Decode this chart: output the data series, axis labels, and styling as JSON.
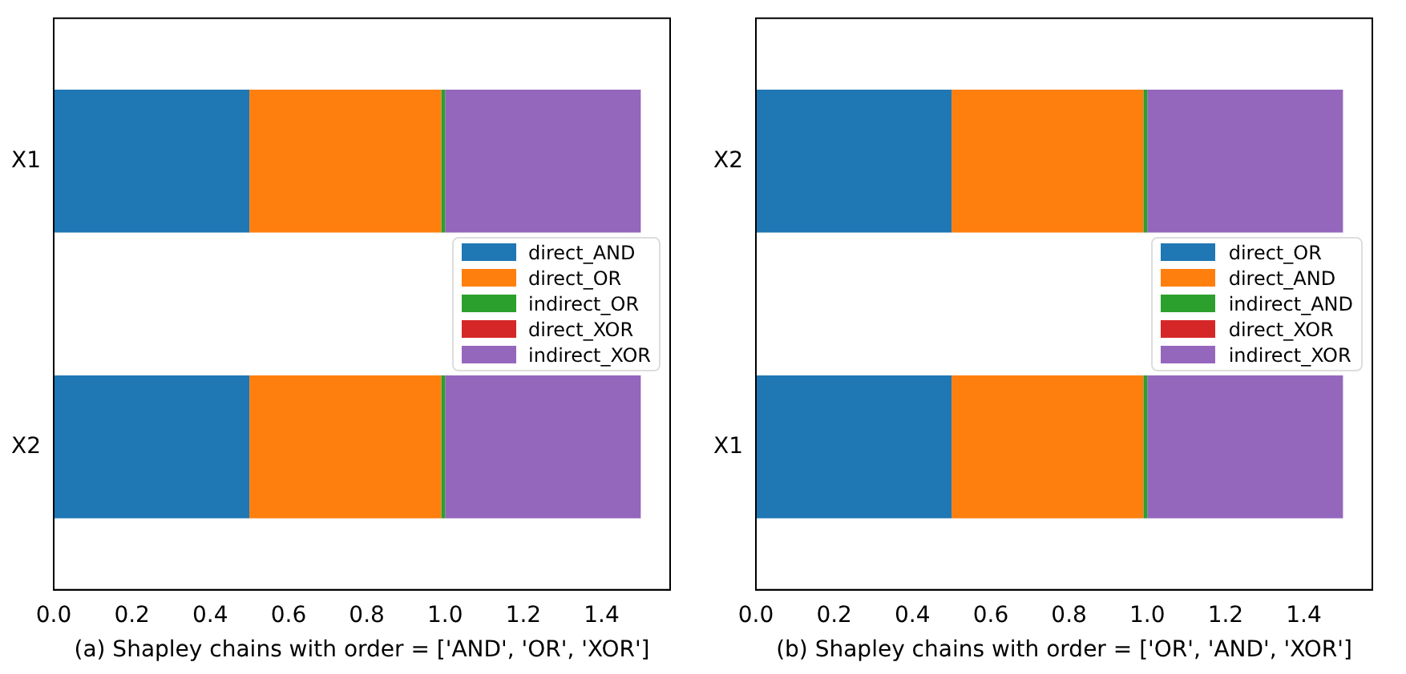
{
  "chart_data": [
    {
      "type": "bar",
      "orientation": "horizontal",
      "stacked": true,
      "categories": [
        "X1",
        "X2"
      ],
      "series": [
        {
          "name": "direct_AND",
          "color": "#1f77b4",
          "values": [
            0.5,
            0.5
          ]
        },
        {
          "name": "direct_OR",
          "color": "#ff7f0e",
          "values": [
            0.49,
            0.49
          ]
        },
        {
          "name": "indirect_OR",
          "color": "#2ca02c",
          "values": [
            0.01,
            0.01
          ]
        },
        {
          "name": "direct_XOR",
          "color": "#d62728",
          "values": [
            0,
            0
          ]
        },
        {
          "name": "indirect_XOR",
          "color": "#9467bd",
          "values": [
            0.5,
            0.5
          ]
        }
      ],
      "xlim": [
        0,
        1.575
      ],
      "xticks": [
        {
          "value": 0,
          "label": "0.0"
        },
        {
          "value": 0.2,
          "label": "0.2"
        },
        {
          "value": 0.4,
          "label": "0.4"
        },
        {
          "value": 0.6,
          "label": "0.6"
        },
        {
          "value": 0.8,
          "label": "0.8"
        },
        {
          "value": 1,
          "label": "1.0"
        },
        {
          "value": 1.2,
          "label": "1.2"
        },
        {
          "value": 1.4,
          "label": "1.4"
        }
      ],
      "xlabel": "(a) Shapley chains with order = ['AND', 'OR', 'XOR']",
      "grid": false,
      "legend": "right"
    },
    {
      "type": "bar",
      "orientation": "horizontal",
      "stacked": true,
      "categories": [
        "X2",
        "X1"
      ],
      "series": [
        {
          "name": "direct_OR",
          "color": "#1f77b4",
          "values": [
            0.5,
            0.5
          ]
        },
        {
          "name": "direct_AND",
          "color": "#ff7f0e",
          "values": [
            0.49,
            0.49
          ]
        },
        {
          "name": "indirect_AND",
          "color": "#2ca02c",
          "values": [
            0.01,
            0.01
          ]
        },
        {
          "name": "direct_XOR",
          "color": "#d62728",
          "values": [
            0,
            0
          ]
        },
        {
          "name": "indirect_XOR",
          "color": "#9467bd",
          "values": [
            0.5,
            0.5
          ]
        }
      ],
      "xlim": [
        0,
        1.575
      ],
      "xticks": [
        {
          "value": 0,
          "label": "0.0"
        },
        {
          "value": 0.2,
          "label": "0.2"
        },
        {
          "value": 0.4,
          "label": "0.4"
        },
        {
          "value": 0.6,
          "label": "0.6"
        },
        {
          "value": 0.8,
          "label": "0.8"
        },
        {
          "value": 1,
          "label": "1.0"
        },
        {
          "value": 1.2,
          "label": "1.2"
        },
        {
          "value": 1.4,
          "label": "1.4"
        }
      ],
      "xlabel": "(b) Shapley chains with order = ['OR', 'AND', 'XOR']",
      "grid": false,
      "legend": "right"
    }
  ]
}
